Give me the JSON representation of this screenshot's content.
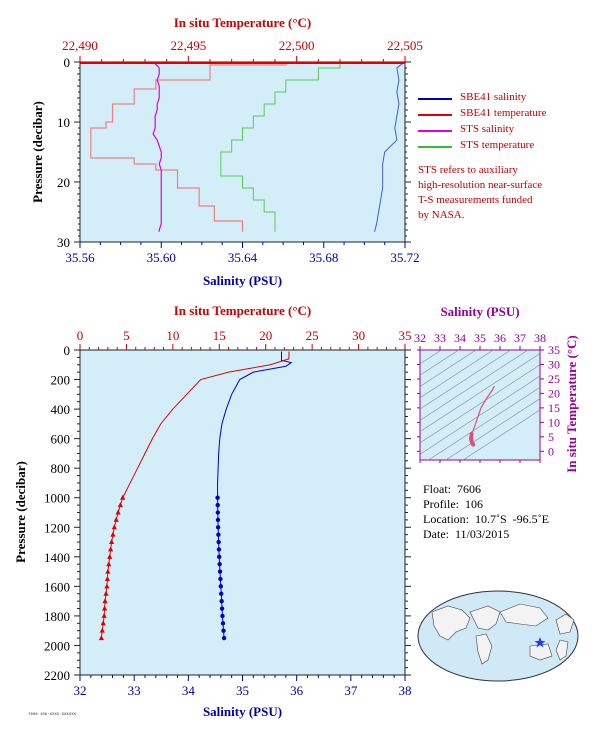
{
  "chart_data": [
    {
      "type": "line",
      "name": "top-panel",
      "xlabel_bottom": "Salinity (PSU)",
      "xlabel_top": "In situ Temperature (°C)",
      "ylabel": "Pressure (decibar)",
      "salinity_range": [
        35.56,
        35.72
      ],
      "temperature_range": [
        22.49,
        22.505
      ],
      "pressure_range": [
        0,
        30
      ],
      "salinity_ticks": [
        "35.56",
        "35.60",
        "35.64",
        "35.68",
        "35.72"
      ],
      "temperature_ticks": [
        "22,490",
        "22,495",
        "22,500",
        "22,505"
      ],
      "pressure_ticks": [
        "0",
        "10",
        "20",
        "30"
      ],
      "legend": [
        {
          "label": "SBE41 salinity",
          "color": "#0000c0"
        },
        {
          "label": "SBE41 temperature",
          "color": "#e00000"
        },
        {
          "label": "STS salinity",
          "color": "#e000e0"
        },
        {
          "label": "STS temperature",
          "color": "#33bb33"
        }
      ],
      "series": [
        {
          "name": "SBE41 salinity",
          "color": "#4060c8",
          "points": [
            [
              35.719,
              0.2
            ],
            [
              35.716,
              1
            ],
            [
              35.717,
              3
            ],
            [
              35.716,
              5
            ],
            [
              35.717,
              7
            ],
            [
              35.716,
              9
            ],
            [
              35.715,
              11
            ],
            [
              35.716,
              13
            ],
            [
              35.71,
              15
            ],
            [
              35.709,
              17
            ],
            [
              35.709,
              19
            ],
            [
              35.709,
              21
            ],
            [
              35.708,
              23
            ],
            [
              35.707,
              25
            ],
            [
              35.706,
              27
            ],
            [
              35.705,
              28.3
            ]
          ]
        },
        {
          "name": "SBE41 temperature",
          "color": "#f08080",
          "points": [
            [
              22.505,
              0.1
            ],
            [
              22.4995,
              0.5
            ],
            [
              22.496,
              3
            ],
            [
              22.4935,
              4.5
            ],
            [
              22.4925,
              7
            ],
            [
              22.4915,
              8
            ],
            [
              22.4915,
              10
            ],
            [
              22.4912,
              11
            ],
            [
              22.4905,
              12
            ],
            [
              22.4905,
              16
            ],
            [
              22.4925,
              17
            ],
            [
              22.4935,
              18
            ],
            [
              22.4945,
              19
            ],
            [
              22.4945,
              21
            ],
            [
              22.4955,
              22
            ],
            [
              22.4955,
              24
            ],
            [
              22.4962,
              25
            ],
            [
              22.4962,
              26.5
            ],
            [
              22.4975,
              27
            ],
            [
              22.4975,
              28.3
            ]
          ]
        },
        {
          "name": "STS salinity",
          "color": "#e000e0",
          "points": [
            [
              35.597,
              0.3
            ],
            [
              35.599,
              1
            ],
            [
              35.599,
              2
            ],
            [
              35.598,
              3
            ],
            [
              35.599,
              4
            ],
            [
              35.599,
              5
            ],
            [
              35.599,
              6
            ],
            [
              35.598,
              7
            ],
            [
              35.598,
              8
            ],
            [
              35.597,
              9
            ],
            [
              35.597,
              10
            ],
            [
              35.597,
              11
            ],
            [
              35.596,
              12
            ],
            [
              35.598,
              13
            ],
            [
              35.599,
              14
            ],
            [
              35.6,
              15
            ],
            [
              35.6,
              16
            ],
            [
              35.599,
              17
            ],
            [
              35.6,
              18
            ],
            [
              35.6,
              19
            ],
            [
              35.6,
              20
            ],
            [
              35.6,
              21
            ],
            [
              35.6,
              22
            ],
            [
              35.6,
              23
            ],
            [
              35.6,
              24
            ],
            [
              35.6,
              25
            ],
            [
              35.6,
              26
            ],
            [
              35.6,
              27
            ],
            [
              35.599,
              28
            ],
            [
              35.599,
              28.3
            ]
          ]
        },
        {
          "name": "STS temperature",
          "color": "#55cc55",
          "points": [
            [
              22.505,
              0.2
            ],
            [
              22.502,
              1
            ],
            [
              22.501,
              3
            ],
            [
              22.4995,
              5
            ],
            [
              22.499,
              7
            ],
            [
              22.4985,
              9
            ],
            [
              22.498,
              11
            ],
            [
              22.4975,
              13
            ],
            [
              22.497,
              15
            ],
            [
              22.4965,
              17
            ],
            [
              22.4965,
              19
            ],
            [
              22.4975,
              21
            ],
            [
              22.498,
              23
            ],
            [
              22.4985,
              25
            ],
            [
              22.499,
              27
            ],
            [
              22.499,
              28.3
            ]
          ]
        }
      ]
    },
    {
      "type": "line",
      "name": "bottom-panel",
      "xlabel_bottom": "Salinity (PSU)",
      "xlabel_top": "In situ Temperature (°C)",
      "ylabel": "Pressure (decibar)",
      "salinity_range": [
        32,
        38
      ],
      "temperature_range": [
        0,
        35
      ],
      "pressure_range": [
        0,
        2200
      ],
      "salinity_ticks": [
        "32",
        "33",
        "34",
        "35",
        "36",
        "37",
        "38"
      ],
      "temperature_ticks": [
        "0",
        "5",
        "10",
        "15",
        "20",
        "25",
        "30",
        "35"
      ],
      "pressure_ticks": [
        "0",
        "200",
        "400",
        "600",
        "800",
        "1000",
        "1200",
        "1400",
        "1600",
        "1800",
        "2000",
        "2200"
      ],
      "series": [
        {
          "name": "Salinity",
          "color": "#0000cc",
          "points": [
            [
              35.72,
              10
            ],
            [
              35.72,
              70
            ],
            [
              35.9,
              85
            ],
            [
              35.8,
              110
            ],
            [
              35.2,
              150
            ],
            [
              34.95,
              200
            ],
            [
              34.8,
              300
            ],
            [
              34.7,
              400
            ],
            [
              34.62,
              500
            ],
            [
              34.58,
              600
            ],
            [
              34.56,
              700
            ],
            [
              34.55,
              800
            ],
            [
              34.54,
              900
            ],
            [
              34.54,
              1000
            ],
            [
              34.55,
              1200
            ],
            [
              34.57,
              1400
            ],
            [
              34.6,
              1600
            ],
            [
              34.63,
              1800
            ],
            [
              34.66,
              1950
            ]
          ]
        },
        {
          "name": "Temperature",
          "color": "#e00000",
          "points": [
            [
              22.5,
              10
            ],
            [
              22.5,
              60
            ],
            [
              20.5,
              100
            ],
            [
              16.0,
              150
            ],
            [
              13.0,
              200
            ],
            [
              11.5,
              300
            ],
            [
              10.0,
              400
            ],
            [
              8.7,
              500
            ],
            [
              7.8,
              600
            ],
            [
              7.0,
              700
            ],
            [
              6.2,
              800
            ],
            [
              5.4,
              900
            ],
            [
              4.6,
              1000
            ],
            [
              4.1,
              1100
            ],
            [
              3.7,
              1200
            ],
            [
              3.4,
              1300
            ],
            [
              3.2,
              1400
            ],
            [
              3.0,
              1500
            ],
            [
              2.9,
              1600
            ],
            [
              2.7,
              1700
            ],
            [
              2.6,
              1800
            ],
            [
              2.4,
              1900
            ],
            [
              2.3,
              1950
            ]
          ]
        }
      ]
    },
    {
      "type": "scatter",
      "name": "ts-diagram",
      "xlabel_top": "Salinity (PSU)",
      "ylabel_right": "In situ Temperature (°C)",
      "xlim": [
        32,
        38
      ],
      "ylim": [
        -3,
        35
      ],
      "x_ticks": [
        "32",
        "33",
        "34",
        "35",
        "36",
        "37",
        "38"
      ],
      "y_ticks": [
        "0",
        "5",
        "10",
        "15",
        "20",
        "25",
        "30",
        "35"
      ],
      "color": "#e0507a",
      "points": [
        [
          35.72,
          22.5
        ],
        [
          35.6,
          21
        ],
        [
          35.3,
          18
        ],
        [
          35.05,
          15
        ],
        [
          34.95,
          13
        ],
        [
          34.85,
          11
        ],
        [
          34.75,
          9
        ],
        [
          34.65,
          7
        ],
        [
          34.58,
          6
        ],
        [
          34.56,
          5
        ],
        [
          34.55,
          4.5
        ],
        [
          34.56,
          4
        ],
        [
          34.58,
          3.5
        ],
        [
          34.6,
          3
        ],
        [
          34.63,
          2.7
        ],
        [
          34.66,
          2.3
        ]
      ]
    }
  ],
  "legend_note": [
    "STS refers to auxiliary",
    "high-resolution near-surface",
    "T-S measurements funded",
    "by NASA."
  ],
  "info": {
    "float": "Float:  7606",
    "profile": "Profile:  106",
    "location": "Location:  10.7˚S  -96.5˚E",
    "date": "Date:  11/03/2015"
  },
  "footer_code": "7606·106·XXXX·XXXXXX"
}
